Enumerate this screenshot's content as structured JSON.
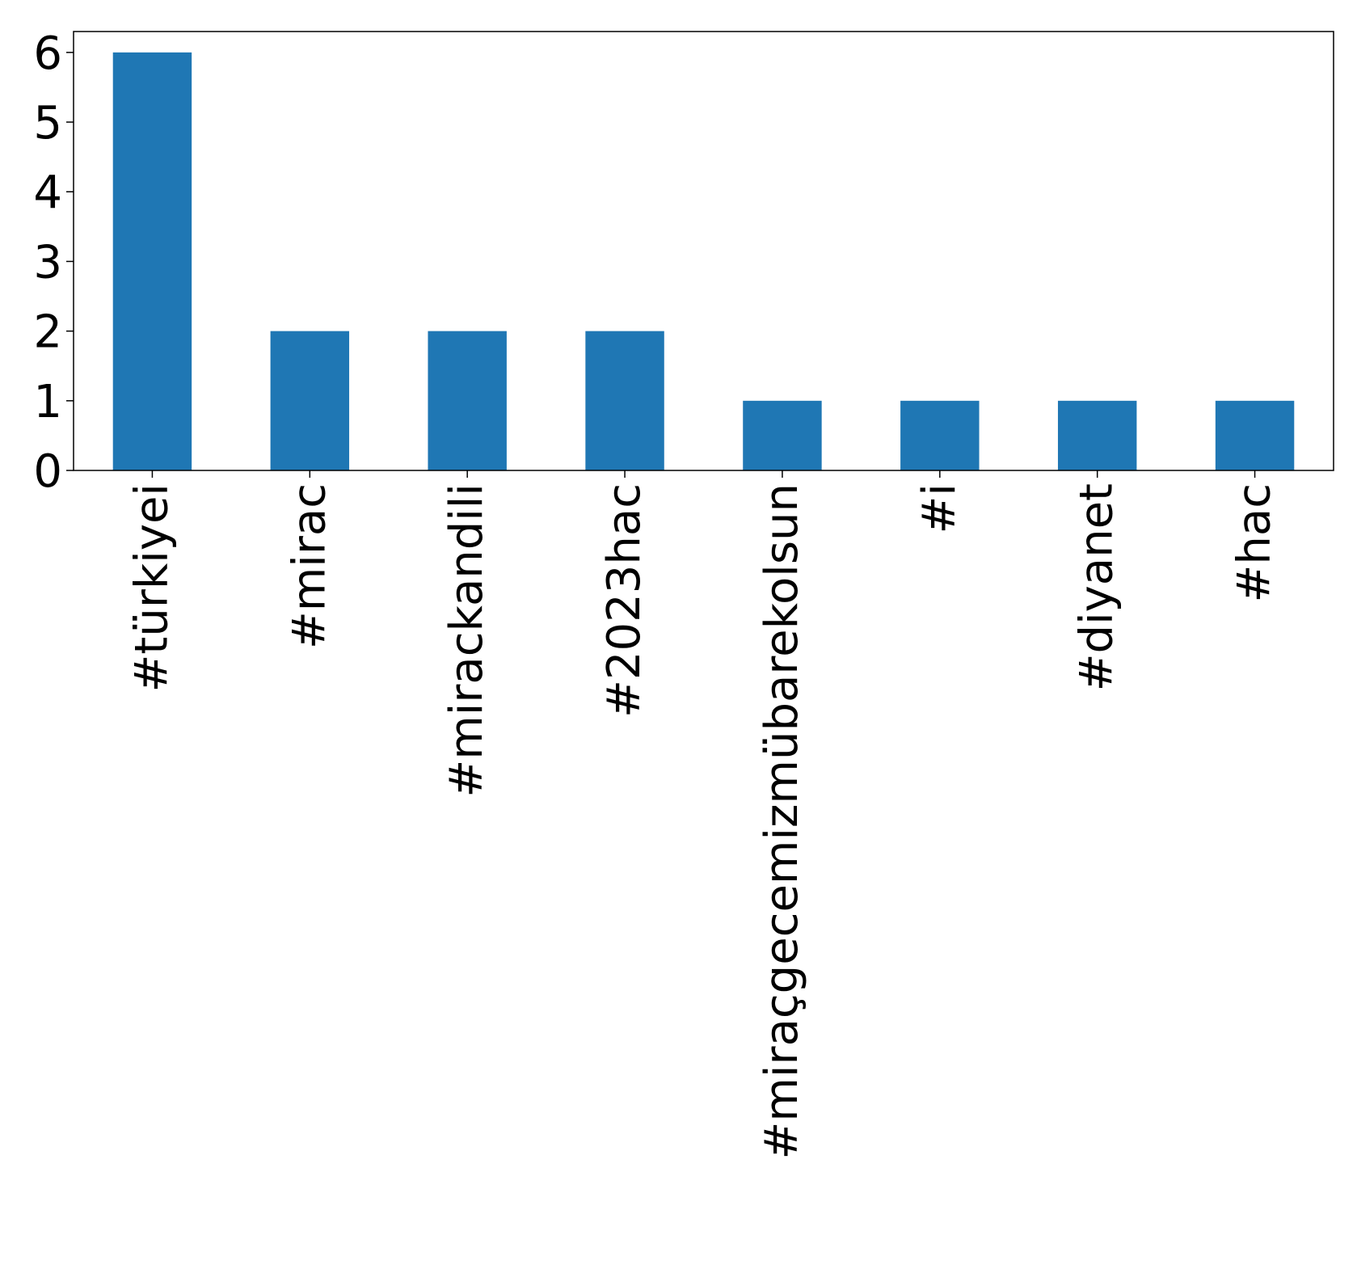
{
  "chart_data": {
    "type": "bar",
    "title": "",
    "xlabel": "",
    "ylabel": "",
    "categories": [
      "#türkiyei",
      "#mirac",
      "#mirackandili",
      "#2023hac",
      "#miraçgecemizmübarekolsun",
      "#i",
      "#diyanet",
      "#hac"
    ],
    "values": [
      6,
      2,
      2,
      2,
      1,
      1,
      1,
      1
    ],
    "ylim": [
      0,
      6.3
    ],
    "yticks": [
      0,
      1,
      2,
      3,
      4,
      5,
      6
    ],
    "grid": false,
    "legend": "none",
    "bar_color": "#1f77b4"
  }
}
